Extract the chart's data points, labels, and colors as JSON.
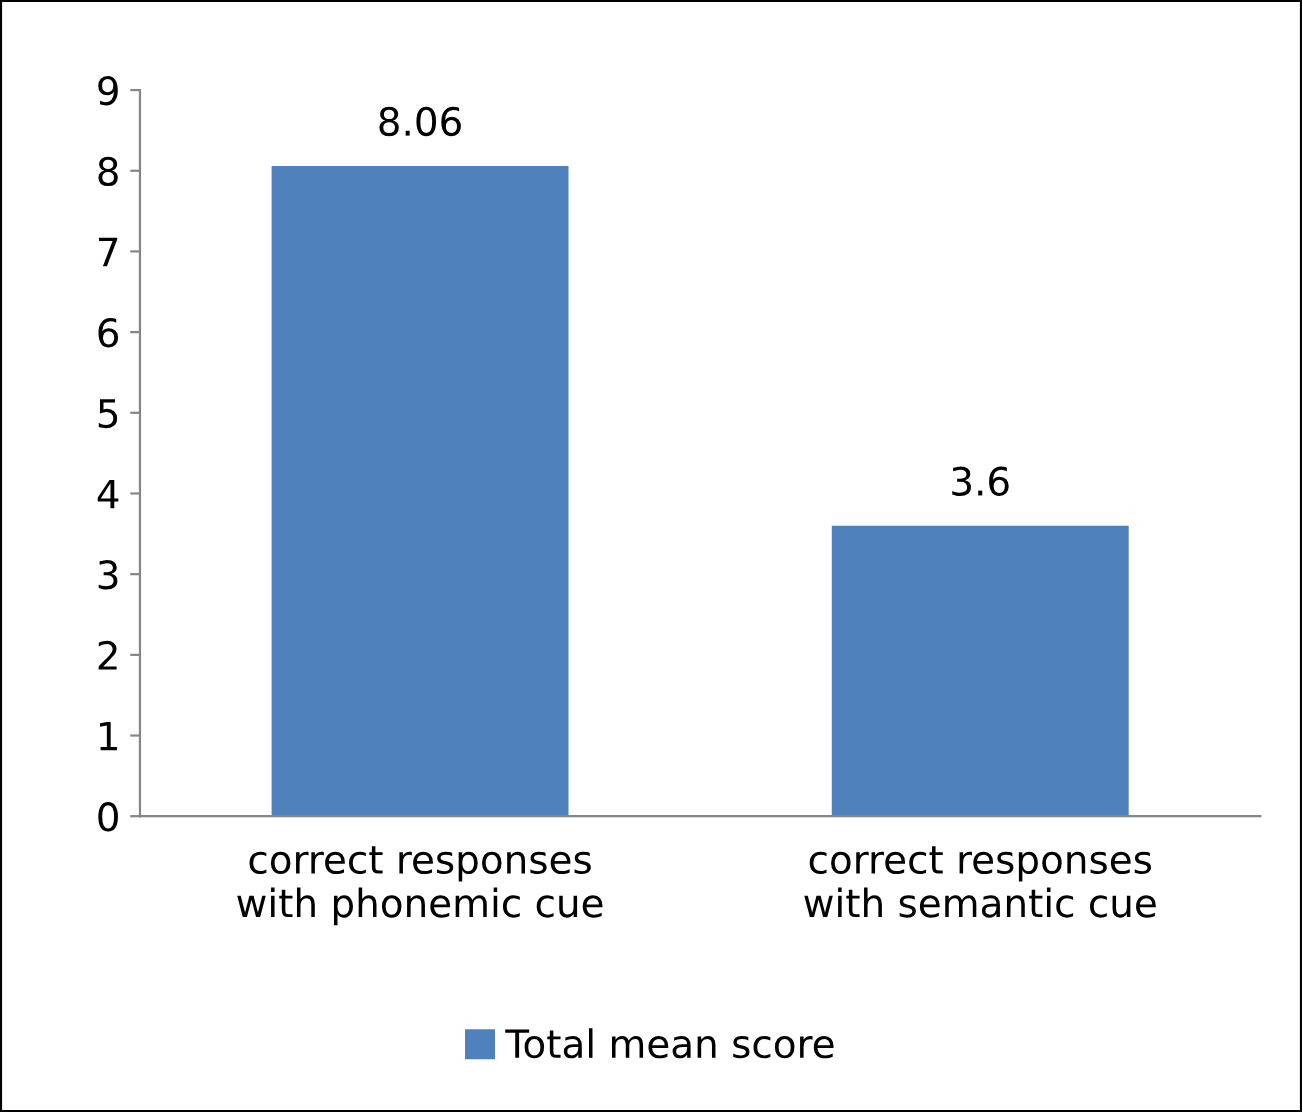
{
  "chart_data": {
    "type": "bar",
    "categories": [
      "correct responses\nwith phonemic cue",
      "correct responses\nwith semantic cue"
    ],
    "series": [
      {
        "name": "Total mean score",
        "color": "#4f81bd",
        "values": [
          8.06,
          3.6
        ]
      }
    ],
    "ylim": [
      0,
      9
    ],
    "yticks": [
      0,
      1,
      2,
      3,
      4,
      5,
      6,
      7,
      8,
      9
    ],
    "data_labels": true,
    "legend": "bottom",
    "grid": false
  }
}
